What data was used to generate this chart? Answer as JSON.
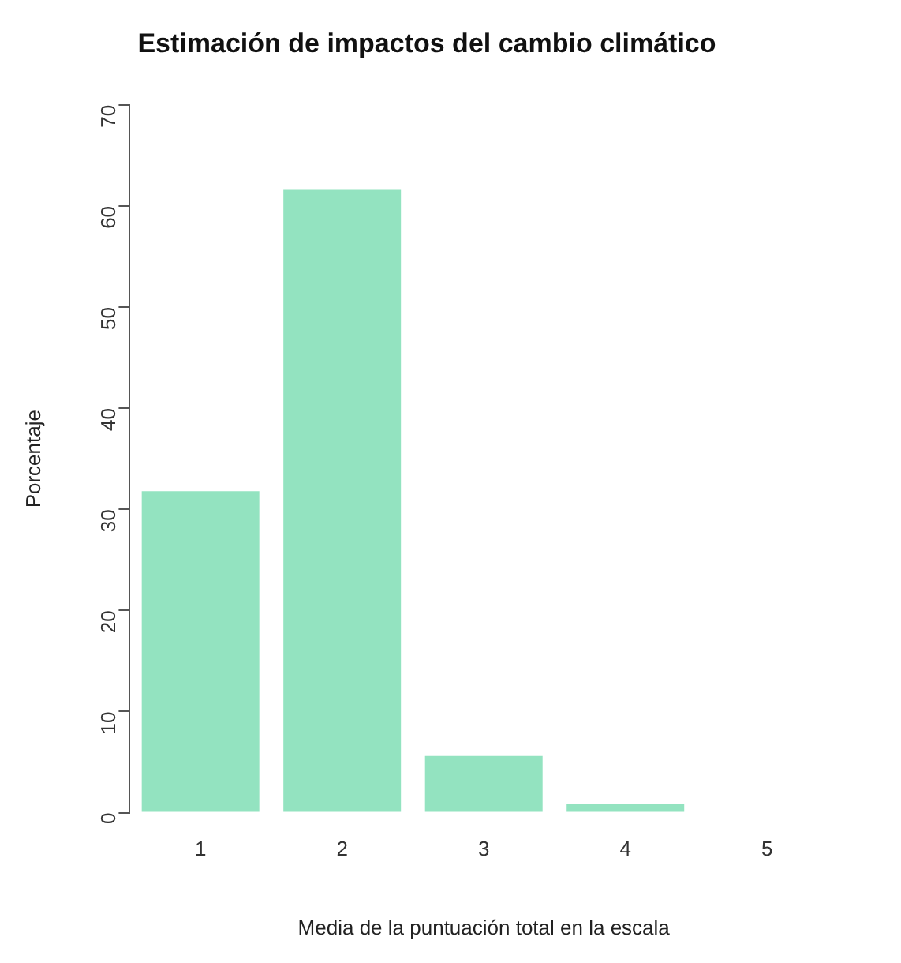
{
  "chart_data": {
    "type": "bar",
    "title": "Estimación de impactos del cambio climático",
    "xlabel": "Media de la puntuación total en la escala",
    "ylabel": "Porcentaje",
    "categories": [
      "1",
      "2",
      "3",
      "4",
      "5"
    ],
    "values": [
      31.8,
      61.6,
      5.6,
      0.9,
      0
    ],
    "color": "#93e3c0",
    "ylim": [
      0,
      70
    ],
    "yticks": [
      0,
      10,
      20,
      30,
      40,
      50,
      60,
      70
    ],
    "grid": false,
    "legend": false
  }
}
